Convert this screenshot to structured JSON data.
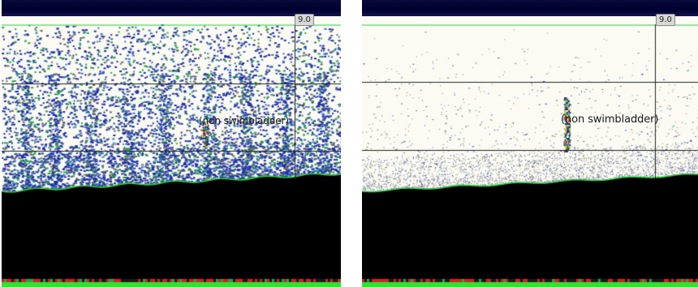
{
  "panels": [
    {
      "id": "left",
      "range_label": "9.0",
      "target_label": "(non swimbladder)",
      "echo_density": "dense"
    },
    {
      "id": "right",
      "range_label": "9.0",
      "target_label": "(non swimbladder)",
      "echo_density": "sparse"
    }
  ],
  "colors": {
    "header": "#000030",
    "background": "#fbfbf4",
    "seabed": "#000000",
    "bottom_line": "#2ecc40",
    "echo_blue": "#1f2ea8",
    "echo_green": "#2a9d4a",
    "echo_yellow": "#d8d020",
    "echo_red": "#d02020",
    "grid": "#222222"
  }
}
